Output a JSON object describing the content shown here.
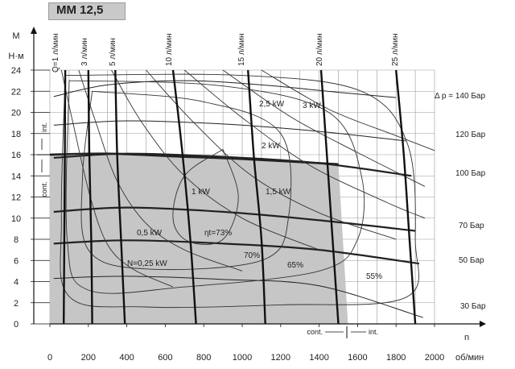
{
  "title": "MM 12,5",
  "chart_data": {
    "type": "line",
    "title": "MM 12,5",
    "xlabel": "об/мин",
    "xlabel_n": "n",
    "ylabel_top": "M",
    "ylabel_unit": "Н·м",
    "xlim": [
      0,
      2000
    ],
    "ylim": [
      0,
      24
    ],
    "x_ticks": [
      0,
      200,
      400,
      600,
      800,
      1000,
      1200,
      1400,
      1600,
      1800,
      2000
    ],
    "y_ticks": [
      0,
      2,
      4,
      6,
      8,
      10,
      12,
      14,
      16,
      18,
      20,
      22,
      24
    ],
    "continuous_region": {
      "label_cont": "cont.",
      "label_int": "int.",
      "polygon": [
        [
          0,
          16
        ],
        [
          300,
          16.1
        ],
        [
          700,
          15.8
        ],
        [
          1000,
          15.6
        ],
        [
          1500,
          15.1
        ],
        [
          1550,
          0
        ],
        [
          0,
          0
        ]
      ]
    },
    "flow_lines": [
      {
        "label": "Q=1 л/мин",
        "points": [
          [
            80,
            24
          ],
          [
            78,
            16
          ],
          [
            75,
            8
          ],
          [
            72,
            0
          ]
        ]
      },
      {
        "label": "3 л/мин",
        "points": [
          [
            200,
            24
          ],
          [
            205,
            16
          ],
          [
            215,
            8
          ],
          [
            220,
            0
          ]
        ]
      },
      {
        "label": "5 л/мин",
        "points": [
          [
            340,
            24
          ],
          [
            350,
            16
          ],
          [
            370,
            8
          ],
          [
            390,
            0
          ]
        ]
      },
      {
        "label": "10 л/мин",
        "points": [
          [
            640,
            24
          ],
          [
            690,
            16
          ],
          [
            730,
            8
          ],
          [
            760,
            0
          ]
        ]
      },
      {
        "label": "15 л/мин",
        "points": [
          [
            1030,
            24
          ],
          [
            1060,
            16
          ],
          [
            1100,
            8
          ],
          [
            1120,
            0
          ]
        ]
      },
      {
        "label": "20 л/мин",
        "points": [
          [
            1410,
            24
          ],
          [
            1440,
            16
          ],
          [
            1470,
            8
          ],
          [
            1500,
            0
          ]
        ]
      },
      {
        "label": "25 л/мин",
        "points": [
          [
            1800,
            24
          ],
          [
            1840,
            16
          ],
          [
            1870,
            8
          ],
          [
            1900,
            0
          ]
        ]
      }
    ],
    "pressure_lines": [
      {
        "label": "Δp = 140 Бар",
        "points": [
          [
            20,
            21.5
          ],
          [
            300,
            22.6
          ],
          [
            700,
            23.0
          ],
          [
            1100,
            22.6
          ],
          [
            1500,
            21.9
          ],
          [
            1800,
            21.4
          ]
        ]
      },
      {
        "label": "120 Бар",
        "points": [
          [
            20,
            18.8
          ],
          [
            400,
            19.2
          ],
          [
            900,
            18.9
          ],
          [
            1400,
            18.2
          ],
          [
            1850,
            17.3
          ]
        ]
      },
      {
        "label": "100 Бар",
        "points": [
          [
            20,
            15.7
          ],
          [
            400,
            16.1
          ],
          [
            900,
            15.8
          ],
          [
            1400,
            15.2
          ],
          [
            1880,
            14.0
          ]
        ]
      },
      {
        "label": "70 Бар",
        "points": [
          [
            20,
            10.6
          ],
          [
            400,
            11.0
          ],
          [
            900,
            10.6
          ],
          [
            1400,
            9.8
          ],
          [
            1900,
            8.8
          ]
        ]
      },
      {
        "label": "50 Бар",
        "points": [
          [
            20,
            7.6
          ],
          [
            400,
            7.9
          ],
          [
            900,
            7.6
          ],
          [
            1400,
            7.0
          ],
          [
            1920,
            5.7
          ]
        ]
      },
      {
        "label": "30 Бар",
        "points": [
          [
            20,
            4.3
          ],
          [
            400,
            4.5
          ],
          [
            900,
            4.2
          ],
          [
            1400,
            3.6
          ],
          [
            1940,
            0.6
          ]
        ]
      }
    ],
    "power_lines": [
      {
        "label": "N=0,25 kW",
        "points": [
          [
            60,
            24
          ],
          [
            120,
            19
          ],
          [
            210,
            12
          ],
          [
            300,
            7.5
          ],
          [
            430,
            5.2
          ],
          [
            640,
            3.5
          ]
        ]
      },
      {
        "label": "0,5 kW",
        "points": [
          [
            150,
            24
          ],
          [
            240,
            19
          ],
          [
            350,
            13.5
          ],
          [
            500,
            9.5
          ],
          [
            700,
            7
          ],
          [
            1000,
            5
          ]
        ]
      },
      {
        "label": "1 kW",
        "points": [
          [
            320,
            24
          ],
          [
            480,
            19
          ],
          [
            700,
            14
          ],
          [
            1000,
            10
          ],
          [
            1400,
            7
          ]
        ]
      },
      {
        "label": "1,5 kW",
        "points": [
          [
            500,
            24
          ],
          [
            750,
            19
          ],
          [
            1050,
            14
          ],
          [
            1400,
            10.5
          ],
          [
            1800,
            8
          ]
        ]
      },
      {
        "label": "2 kW",
        "points": [
          [
            700,
            24
          ],
          [
            1000,
            19.5
          ],
          [
            1350,
            15
          ],
          [
            1750,
            11.5
          ],
          [
            1950,
            10
          ]
        ]
      },
      {
        "label": "2,5 kW",
        "points": [
          [
            900,
            24
          ],
          [
            1250,
            19.6
          ],
          [
            1600,
            16.2
          ],
          [
            1950,
            13
          ]
        ]
      },
      {
        "label": "3 kW",
        "points": [
          [
            1100,
            24
          ],
          [
            1450,
            20.3
          ],
          [
            1800,
            17.8
          ],
          [
            2000,
            16.4
          ]
        ]
      }
    ],
    "efficiency_lines": [
      {
        "label": "ηt=73%",
        "points": [
          [
            900,
            16.5
          ],
          [
            980,
            12
          ],
          [
            900,
            8
          ],
          [
            720,
            7.8
          ],
          [
            640,
            10
          ],
          [
            700,
            14
          ],
          [
            900,
            16.5
          ]
        ]
      },
      {
        "label": "70%",
        "points": [
          [
            220,
            22
          ],
          [
            800,
            21
          ],
          [
            1200,
            18
          ],
          [
            1240,
            10
          ],
          [
            1100,
            6
          ],
          [
            500,
            5.2
          ],
          [
            200,
            7
          ],
          [
            170,
            14
          ],
          [
            220,
            22
          ]
        ]
      },
      {
        "label": "65%",
        "points": [
          [
            100,
            23
          ],
          [
            900,
            22.5
          ],
          [
            1450,
            20
          ],
          [
            1620,
            14
          ],
          [
            1600,
            8
          ],
          [
            1400,
            5
          ],
          [
            700,
            3.5
          ],
          [
            200,
            3.2
          ],
          [
            90,
            8
          ],
          [
            100,
            23
          ]
        ]
      },
      {
        "label": "55%",
        "points": [
          [
            80,
            23.5
          ],
          [
            1000,
            23.5
          ],
          [
            1620,
            22
          ],
          [
            1860,
            17
          ],
          [
            1900,
            8
          ],
          [
            1850,
            2.5
          ],
          [
            1200,
            1.8
          ],
          [
            500,
            1.6
          ],
          [
            100,
            2.6
          ],
          [
            60,
            10
          ],
          [
            80,
            23.5
          ]
        ]
      }
    ],
    "flow_labels": [
      "Q=1 л/мин",
      "3 л/мин",
      "5 л/мин",
      "10 л/мин",
      "15 л/мин",
      "20 л/мин",
      "25 л/мин"
    ],
    "pressure_labels": [
      "Δ p = 140 Бар",
      "120 Бар",
      "100 Бар",
      "70 Бар",
      "50 Бар",
      "30 Бар"
    ],
    "power_labels": [
      "N=0,25 kW",
      "0,5 kW",
      "1 kW",
      "1,5 kW",
      "2 kW",
      "2,5 kW",
      "3 kW"
    ],
    "efficiency_labels": [
      "ηt=73%",
      "70%",
      "65%",
      "55%"
    ]
  }
}
